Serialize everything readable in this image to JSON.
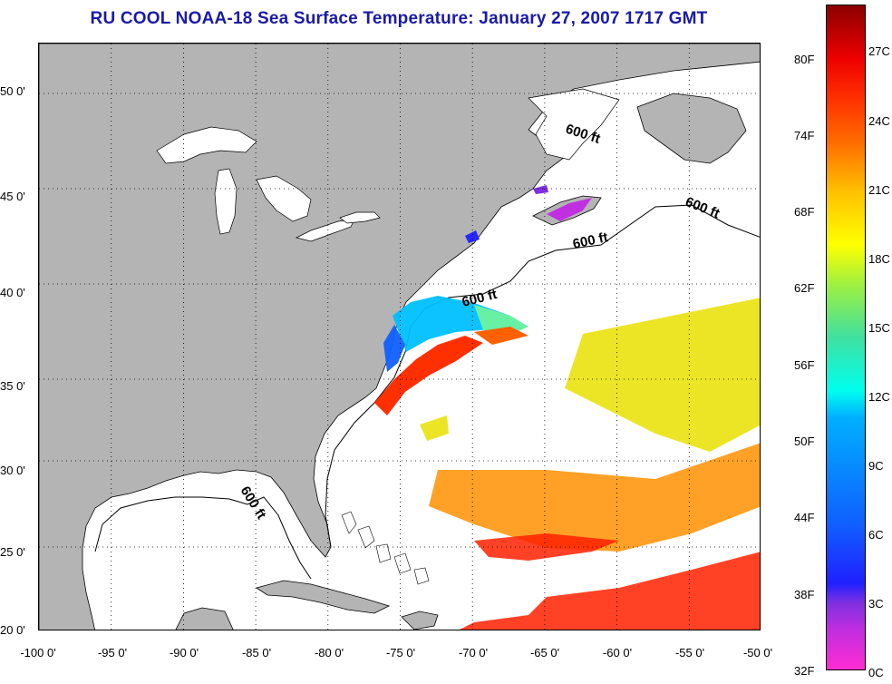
{
  "title": "RU COOL  NOAA-18  Sea Surface Temperature:  January 27, 2007 1717 GMT",
  "map": {
    "lon_range": [
      -100,
      -50
    ],
    "lat_range": [
      20,
      52.5
    ],
    "latitude_labels": [
      "50 0'",
      "45 0'",
      "40 0'",
      "35 0'",
      "30 0'",
      "25 0'",
      "20 0'"
    ],
    "longitude_labels": [
      "-100 0'",
      "-95 0'",
      "-90 0'",
      "-85 0'",
      "-80 0'",
      "-75 0'",
      "-70 0'",
      "-65 0'",
      "-60 0'",
      "-55 0'",
      "-50 0'"
    ],
    "isobath_labels": [
      "600 ft",
      "600 ft",
      "600 ft",
      "600 ft",
      "600 ft"
    ],
    "colors": {
      "land": "#b4b4b4",
      "ocean_no_data": "#ffffff",
      "graticule": "#000000"
    }
  },
  "colorbar": {
    "fahrenheit_labels": [
      "80F",
      "74F",
      "68F",
      "62F",
      "56F",
      "50F",
      "44F",
      "38F",
      "32F"
    ],
    "celsius_labels": [
      "27C",
      "24C",
      "21C",
      "18C",
      "15C",
      "12C",
      "9C",
      "6C",
      "3C",
      "0C"
    ],
    "range_c": [
      0,
      28.5
    ],
    "gradient_colors": [
      "#ff2cd2",
      "#8030e0",
      "#2020ff",
      "#00b0ff",
      "#00ffee",
      "#a0f040",
      "#ffff00",
      "#ffc000",
      "#ff7000",
      "#ff3000",
      "#ee0000",
      "#8b0000"
    ]
  }
}
